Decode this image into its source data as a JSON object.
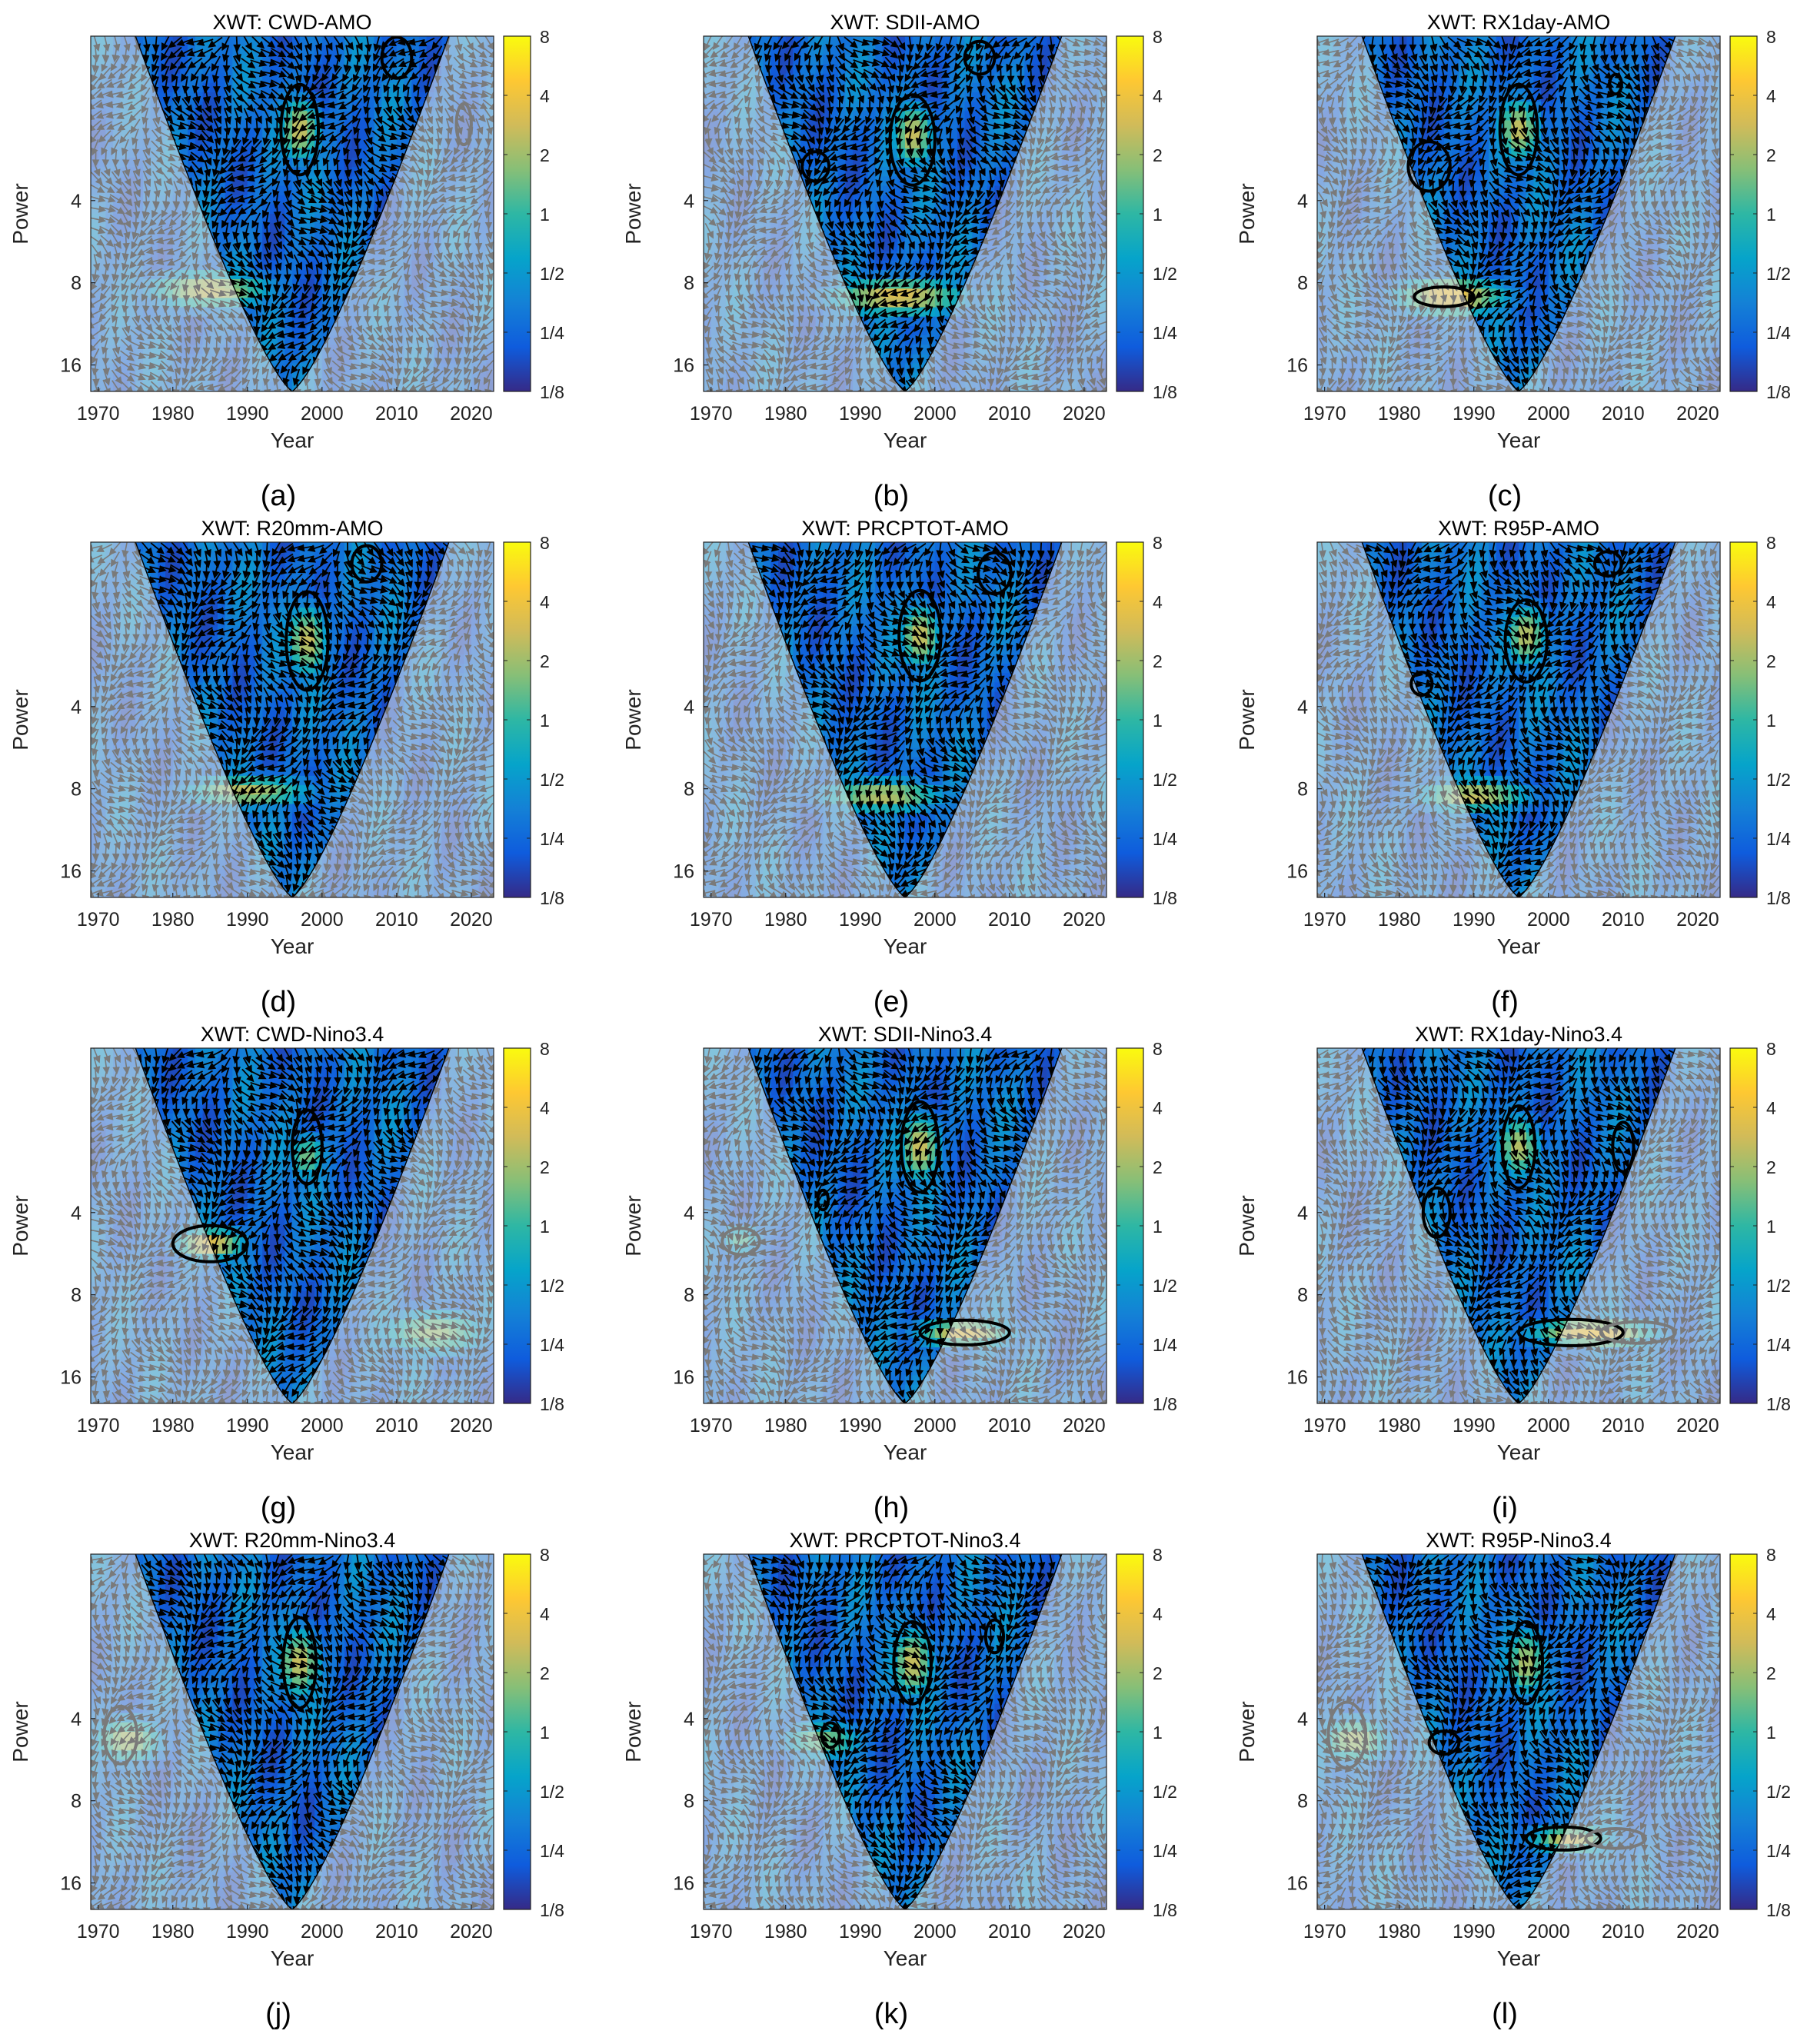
{
  "colors": {
    "parula": [
      "#352a87",
      "#0f5cdd",
      "#1481d6",
      "#06a4ca",
      "#2eb7a4",
      "#87bf77",
      "#d1bb59",
      "#fec832",
      "#f9fb0e"
    ],
    "coi_overlay": "#e8e8e8",
    "sig_line": "#000000",
    "sig_line_outside": "#7a7a7a",
    "arrow_inside": "#000000",
    "arrow_outside": "#7a7a7a"
  },
  "chart_data": [
    {
      "type": "heatmap",
      "title": "XWT: CWD-AMO",
      "xlabel": "Year",
      "ylabel": "Power",
      "panel_label": "(a)",
      "xlim": [
        1969,
        2023
      ],
      "xticks": [
        "1970",
        "1980",
        "1990",
        "2000",
        "2010",
        "2020"
      ],
      "ylim": [
        1.0,
        20.0
      ],
      "yticks": [
        "4",
        "8",
        "16"
      ],
      "colorbar_ticks": [
        "8",
        "4",
        "2",
        "1",
        "1/2",
        "1/4",
        "1/8"
      ],
      "hotspots": [
        {
          "year": 1985,
          "period": 8.5,
          "level": 0.75,
          "spread": 9,
          "pspread": 0.25
        },
        {
          "year": 1997,
          "period": 2.2,
          "level": 0.75,
          "spread": 3,
          "pspread": 0.4
        }
      ],
      "sig_regions": [
        {
          "year": 1997,
          "period": 2.2,
          "wyear": 2.5,
          "wperiod": 0.55,
          "inside": true
        },
        {
          "year": 2010,
          "period": 1.2,
          "wyear": 2.0,
          "wperiod": 0.25,
          "inside": true
        },
        {
          "year": 2019,
          "period": 2.1,
          "wyear": 1.0,
          "wperiod": 0.25,
          "inside": false
        }
      ]
    },
    {
      "type": "heatmap",
      "title": "XWT: SDII-AMO",
      "xlabel": "Year",
      "ylabel": "Power",
      "panel_label": "(b)",
      "xlim": [
        1969,
        2023
      ],
      "xticks": [
        "1970",
        "1980",
        "1990",
        "2000",
        "2010",
        "2020"
      ],
      "ylim": [
        1.0,
        20.0
      ],
      "yticks": [
        "4",
        "8",
        "16"
      ],
      "colorbar_ticks": [
        "8",
        "4",
        "2",
        "1",
        "1/2",
        "1/4",
        "1/8"
      ],
      "hotspots": [
        {
          "year": 1995,
          "period": 9.0,
          "level": 0.8,
          "spread": 10,
          "pspread": 0.25
        },
        {
          "year": 1997,
          "period": 2.3,
          "level": 0.75,
          "spread": 3,
          "pspread": 0.4
        }
      ],
      "sig_regions": [
        {
          "year": 1997,
          "period": 2.4,
          "wyear": 3.0,
          "wperiod": 0.55,
          "inside": true
        },
        {
          "year": 1984,
          "period": 3.0,
          "wyear": 1.8,
          "wperiod": 0.18,
          "inside": true
        },
        {
          "year": 2006,
          "period": 1.2,
          "wyear": 2.0,
          "wperiod": 0.2,
          "inside": true
        }
      ]
    },
    {
      "type": "heatmap",
      "title": "XWT: RX1day-AMO",
      "xlabel": "Year",
      "ylabel": "Power",
      "panel_label": "(c)",
      "xlim": [
        1969,
        2023
      ],
      "xticks": [
        "1970",
        "1980",
        "1990",
        "2000",
        "2010",
        "2020"
      ],
      "ylim": [
        1.0,
        20.0
      ],
      "yticks": [
        "4",
        "8",
        "16"
      ],
      "colorbar_ticks": [
        "8",
        "4",
        "2",
        "1",
        "1/2",
        "1/4",
        "1/8"
      ],
      "hotspots": [
        {
          "year": 1987,
          "period": 9.0,
          "level": 0.85,
          "spread": 8,
          "pspread": 0.25
        },
        {
          "year": 1996,
          "period": 2.2,
          "level": 0.75,
          "spread": 3,
          "pspread": 0.4
        }
      ],
      "sig_regions": [
        {
          "year": 1996,
          "period": 2.2,
          "wyear": 2.5,
          "wperiod": 0.55,
          "inside": true
        },
        {
          "year": 1984,
          "period": 3.0,
          "wyear": 2.8,
          "wperiod": 0.3,
          "inside": true
        },
        {
          "year": 1986,
          "period": 9.0,
          "wyear": 4.0,
          "wperiod": 0.12,
          "inside": true
        },
        {
          "year": 2009,
          "period": 1.5,
          "wyear": 0.8,
          "wperiod": 0.12,
          "inside": true
        }
      ]
    },
    {
      "type": "heatmap",
      "title": "XWT: R20mm-AMO",
      "xlabel": "Year",
      "ylabel": "Power",
      "panel_label": "(d)",
      "xlim": [
        1969,
        2023
      ],
      "xticks": [
        "1970",
        "1980",
        "1990",
        "2000",
        "2010",
        "2020"
      ],
      "ylim": [
        1.0,
        20.0
      ],
      "yticks": [
        "4",
        "8",
        "16"
      ],
      "colorbar_ticks": [
        "8",
        "4",
        "2",
        "1",
        "1/2",
        "1/4",
        "1/8"
      ],
      "hotspots": [
        {
          "year": 1990,
          "period": 8.2,
          "level": 0.72,
          "spread": 9,
          "pspread": 0.22
        },
        {
          "year": 1998,
          "period": 2.3,
          "level": 0.75,
          "spread": 3,
          "pspread": 0.45
        }
      ],
      "sig_regions": [
        {
          "year": 1998,
          "period": 2.3,
          "wyear": 2.8,
          "wperiod": 0.6,
          "inside": true
        },
        {
          "year": 2006,
          "period": 1.2,
          "wyear": 2.0,
          "wperiod": 0.22,
          "inside": true
        }
      ]
    },
    {
      "type": "heatmap",
      "title": "XWT: PRCPTOT-AMO",
      "xlabel": "Year",
      "ylabel": "Power",
      "panel_label": "(e)",
      "xlim": [
        1969,
        2023
      ],
      "xticks": [
        "1970",
        "1980",
        "1990",
        "2000",
        "2010",
        "2020"
      ],
      "ylim": [
        1.0,
        20.0
      ],
      "yticks": [
        "4",
        "8",
        "16"
      ],
      "colorbar_ticks": [
        "8",
        "4",
        "2",
        "1",
        "1/2",
        "1/4",
        "1/8"
      ],
      "hotspots": [
        {
          "year": 1993,
          "period": 8.5,
          "level": 0.72,
          "spread": 9,
          "pspread": 0.22
        },
        {
          "year": 1998,
          "period": 2.2,
          "level": 0.75,
          "spread": 3,
          "pspread": 0.4
        }
      ],
      "sig_regions": [
        {
          "year": 1998,
          "period": 2.2,
          "wyear": 2.8,
          "wperiod": 0.55,
          "inside": true
        },
        {
          "year": 2008,
          "period": 1.3,
          "wyear": 2.2,
          "wperiod": 0.25,
          "inside": true
        }
      ]
    },
    {
      "type": "heatmap",
      "title": "XWT: R95P-AMO",
      "xlabel": "Year",
      "ylabel": "Power",
      "panel_label": "(f)",
      "xlim": [
        1969,
        2023
      ],
      "xticks": [
        "1970",
        "1980",
        "1990",
        "2000",
        "2010",
        "2020"
      ],
      "ylim": [
        1.0,
        20.0
      ],
      "yticks": [
        "4",
        "8",
        "16"
      ],
      "colorbar_ticks": [
        "8",
        "4",
        "2",
        "1",
        "1/2",
        "1/4",
        "1/8"
      ],
      "hotspots": [
        {
          "year": 1990,
          "period": 8.5,
          "level": 0.75,
          "spread": 8,
          "pspread": 0.22
        },
        {
          "year": 1997,
          "period": 2.2,
          "level": 0.72,
          "spread": 3,
          "pspread": 0.4
        }
      ],
      "sig_regions": [
        {
          "year": 1997,
          "period": 2.3,
          "wyear": 2.8,
          "wperiod": 0.5,
          "inside": true
        },
        {
          "year": 1983,
          "period": 3.3,
          "wyear": 1.4,
          "wperiod": 0.14,
          "inside": true
        },
        {
          "year": 2008,
          "period": 1.2,
          "wyear": 1.8,
          "wperiod": 0.15,
          "inside": true
        }
      ]
    },
    {
      "type": "heatmap",
      "title": "XWT: CWD-Nino3.4",
      "xlabel": "Year",
      "ylabel": "Power",
      "panel_label": "(g)",
      "xlim": [
        1969,
        2023
      ],
      "xticks": [
        "1970",
        "1980",
        "1990",
        "2000",
        "2010",
        "2020"
      ],
      "ylim": [
        1.0,
        20.0
      ],
      "yticks": [
        "4",
        "8",
        "16"
      ],
      "colorbar_ticks": [
        "8",
        "4",
        "2",
        "1",
        "1/2",
        "1/4",
        "1/8"
      ],
      "hotspots": [
        {
          "year": 1985,
          "period": 5.2,
          "level": 0.82,
          "spread": 5,
          "pspread": 0.22
        },
        {
          "year": 2015,
          "period": 11.0,
          "level": 0.65,
          "spread": 8,
          "pspread": 0.3
        },
        {
          "year": 1998,
          "period": 2.5,
          "level": 0.6,
          "spread": 3,
          "pspread": 0.3
        }
      ],
      "sig_regions": [
        {
          "year": 1985,
          "period": 5.2,
          "wyear": 5.0,
          "wperiod": 0.22,
          "inside": true
        },
        {
          "year": 1998,
          "period": 2.3,
          "wyear": 2.0,
          "wperiod": 0.45,
          "inside": true
        }
      ]
    },
    {
      "type": "heatmap",
      "title": "XWT: SDII-Nino3.4",
      "xlabel": "Year",
      "ylabel": "Power",
      "panel_label": "(h)",
      "xlim": [
        1969,
        2023
      ],
      "xticks": [
        "1970",
        "1980",
        "1990",
        "2000",
        "2010",
        "2020"
      ],
      "ylim": [
        1.0,
        20.0
      ],
      "yticks": [
        "4",
        "8",
        "16"
      ],
      "colorbar_ticks": [
        "8",
        "4",
        "2",
        "1",
        "1/2",
        "1/4",
        "1/8"
      ],
      "hotspots": [
        {
          "year": 2004,
          "period": 11.0,
          "level": 0.8,
          "spread": 7,
          "pspread": 0.2
        },
        {
          "year": 1998,
          "period": 2.3,
          "level": 0.75,
          "spread": 3,
          "pspread": 0.45
        },
        {
          "year": 1974,
          "period": 5.0,
          "level": 0.55,
          "spread": 3,
          "pspread": 0.2
        }
      ],
      "sig_regions": [
        {
          "year": 1998,
          "period": 2.3,
          "wyear": 2.5,
          "wperiod": 0.55,
          "inside": true
        },
        {
          "year": 2004,
          "period": 11.0,
          "wyear": 6.0,
          "wperiod": 0.15,
          "inside": true
        },
        {
          "year": 1974,
          "period": 5.1,
          "wyear": 2.5,
          "wperiod": 0.16,
          "inside": false
        },
        {
          "year": 1985,
          "period": 3.6,
          "wyear": 0.7,
          "wperiod": 0.12,
          "inside": true
        }
      ]
    },
    {
      "type": "heatmap",
      "title": "XWT: RX1day-Nino3.4",
      "xlabel": "Year",
      "ylabel": "Power",
      "panel_label": "(i)",
      "xlim": [
        1969,
        2023
      ],
      "xticks": [
        "1970",
        "1980",
        "1990",
        "2000",
        "2010",
        "2020"
      ],
      "ylim": [
        1.0,
        20.0
      ],
      "yticks": [
        "4",
        "8",
        "16"
      ],
      "colorbar_ticks": [
        "8",
        "4",
        "2",
        "1",
        "1/2",
        "1/4",
        "1/8"
      ],
      "hotspots": [
        {
          "year": 2006,
          "period": 11.0,
          "level": 0.85,
          "spread": 9,
          "pspread": 0.2
        },
        {
          "year": 1996,
          "period": 2.3,
          "level": 0.72,
          "spread": 3,
          "pspread": 0.4
        }
      ],
      "sig_regions": [
        {
          "year": 1996,
          "period": 2.3,
          "wyear": 2.2,
          "wperiod": 0.5,
          "inside": true
        },
        {
          "year": 2010,
          "period": 2.3,
          "wyear": 1.4,
          "wperiod": 0.3,
          "inside": true
        },
        {
          "year": 1985,
          "period": 4.0,
          "wyear": 1.8,
          "wperiod": 0.3,
          "inside": true
        },
        {
          "year": 2003,
          "period": 11.0,
          "wyear": 7.0,
          "wperiod": 0.16,
          "inside": true
        },
        {
          "year": 2012,
          "period": 11.0,
          "wyear": 5.0,
          "wperiod": 0.13,
          "inside": false
        }
      ]
    },
    {
      "type": "heatmap",
      "title": "XWT: R20mm-Nino3.4",
      "xlabel": "Year",
      "ylabel": "Power",
      "panel_label": "(j)",
      "xlim": [
        1969,
        2023
      ],
      "xticks": [
        "1970",
        "1980",
        "1990",
        "2000",
        "2010",
        "2020"
      ],
      "ylim": [
        1.0,
        20.0
      ],
      "yticks": [
        "4",
        "8",
        "16"
      ],
      "colorbar_ticks": [
        "8",
        "4",
        "2",
        "1",
        "1/2",
        "1/4",
        "1/8"
      ],
      "hotspots": [
        {
          "year": 1974,
          "period": 4.8,
          "level": 0.7,
          "spread": 5,
          "pspread": 0.3
        },
        {
          "year": 1997,
          "period": 2.5,
          "level": 0.75,
          "spread": 3,
          "pspread": 0.45
        }
      ],
      "sig_regions": [
        {
          "year": 1997,
          "period": 2.5,
          "wyear": 2.2,
          "wperiod": 0.55,
          "inside": true
        },
        {
          "year": 1973,
          "period": 4.6,
          "wyear": 2.2,
          "wperiod": 0.35,
          "inside": false
        }
      ]
    },
    {
      "type": "heatmap",
      "title": "XWT: PRCPTOT-Nino3.4",
      "xlabel": "Year",
      "ylabel": "Power",
      "panel_label": "(k)",
      "xlim": [
        1969,
        2023
      ],
      "xticks": [
        "1970",
        "1980",
        "1990",
        "2000",
        "2010",
        "2020"
      ],
      "ylim": [
        1.0,
        20.0
      ],
      "yticks": [
        "4",
        "8",
        "16"
      ],
      "colorbar_ticks": [
        "8",
        "4",
        "2",
        "1",
        "1/2",
        "1/4",
        "1/8"
      ],
      "hotspots": [
        {
          "year": 1985,
          "period": 4.8,
          "level": 0.62,
          "spread": 6,
          "pspread": 0.25
        },
        {
          "year": 1997,
          "period": 2.5,
          "level": 0.75,
          "spread": 3,
          "pspread": 0.45
        }
      ],
      "sig_regions": [
        {
          "year": 1997,
          "period": 2.5,
          "wyear": 2.5,
          "wperiod": 0.5,
          "inside": true
        },
        {
          "year": 2008,
          "period": 2.0,
          "wyear": 1.2,
          "wperiod": 0.2,
          "inside": true
        },
        {
          "year": 1986,
          "period": 4.6,
          "wyear": 1.2,
          "wperiod": 0.15,
          "inside": true
        }
      ]
    },
    {
      "type": "heatmap",
      "title": "XWT: R95P-Nino3.4",
      "xlabel": "Year",
      "ylabel": "Power",
      "panel_label": "(l)",
      "xlim": [
        1969,
        2023
      ],
      "xticks": [
        "1970",
        "1980",
        "1990",
        "2000",
        "2010",
        "2020"
      ],
      "ylim": [
        1.0,
        20.0
      ],
      "yticks": [
        "4",
        "8",
        "16"
      ],
      "colorbar_ticks": [
        "8",
        "4",
        "2",
        "1",
        "1/2",
        "1/4",
        "1/8"
      ],
      "hotspots": [
        {
          "year": 1974,
          "period": 4.8,
          "level": 0.7,
          "spread": 5,
          "pspread": 0.3
        },
        {
          "year": 2003,
          "period": 11.0,
          "level": 0.75,
          "spread": 6,
          "pspread": 0.2
        },
        {
          "year": 1997,
          "period": 2.5,
          "level": 0.7,
          "spread": 3,
          "pspread": 0.45
        }
      ],
      "sig_regions": [
        {
          "year": 1997,
          "period": 2.5,
          "wyear": 2.2,
          "wperiod": 0.5,
          "inside": true
        },
        {
          "year": 1986,
          "period": 4.9,
          "wyear": 2.0,
          "wperiod": 0.14,
          "inside": true
        },
        {
          "year": 2002,
          "period": 11.0,
          "wyear": 5.0,
          "wperiod": 0.14,
          "inside": true
        },
        {
          "year": 1973,
          "period": 4.6,
          "wyear": 2.5,
          "wperiod": 0.4,
          "inside": false
        },
        {
          "year": 2009,
          "period": 11.0,
          "wyear": 4.0,
          "wperiod": 0.12,
          "inside": false
        }
      ]
    }
  ]
}
